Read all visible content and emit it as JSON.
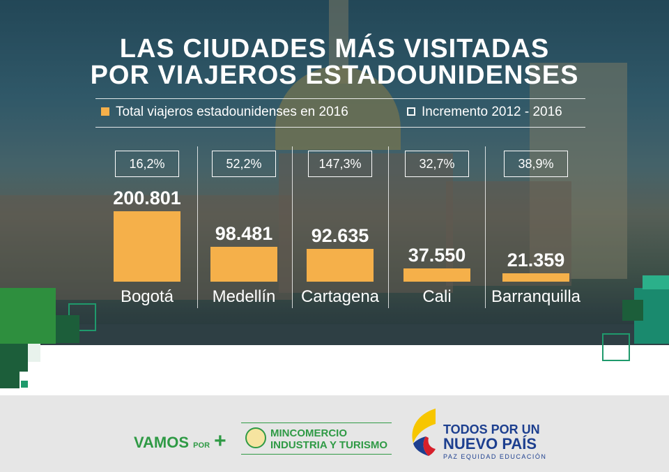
{
  "title": {
    "line1": "LAS CIUDADES MÁS VISITADAS",
    "line2": "POR VIAJEROS ESTADOUNIDENSES"
  },
  "legend": {
    "total": "Total viajeros estadounidenses en 2016",
    "increment": "Incremento 2012 - 2016",
    "total_color": "#f5b04a",
    "increment_color": "#ffffff"
  },
  "colors": {
    "bar": "#f5b04a",
    "text": "#ffffff",
    "green": "#2f9a45",
    "navy": "#1d3f8f"
  },
  "chart_data": {
    "type": "bar",
    "title": "LAS CIUDADES MÁS VISITADAS POR VIAJEROS ESTADOUNIDENSES",
    "categories": [
      "Bogotá",
      "Medellín",
      "Cartagena",
      "Cali",
      "Barranquilla"
    ],
    "series": [
      {
        "name": "Total viajeros estadounidenses en 2016",
        "values": [
          200801,
          98481,
          92635,
          37550,
          21359
        ],
        "labels": [
          "200.801",
          "98.481",
          "92.635",
          "37.550",
          "21.359"
        ]
      },
      {
        "name": "Incremento 2012 - 2016",
        "values": [
          16.2,
          52.2,
          147.3,
          32.7,
          38.9
        ],
        "labels": [
          "16,2%",
          "52,2%",
          "147,3%",
          "32,7%",
          "38,9%"
        ]
      }
    ],
    "ylim": [
      0,
      200801
    ],
    "grid": false,
    "legend_position": "top"
  },
  "footer": {
    "vamos": "VAMOS",
    "vamos_por": "POR",
    "vamos_plus": "+",
    "mincomercio_line1": "MINCOMERCIO",
    "mincomercio_line2": "INDUSTRIA Y TURISMO",
    "todos_line1": "TODOS POR UN",
    "todos_line2": "NUEVO PAÍS",
    "todos_line3": "PAZ  EQUIDAD  EDUCACIÓN"
  }
}
